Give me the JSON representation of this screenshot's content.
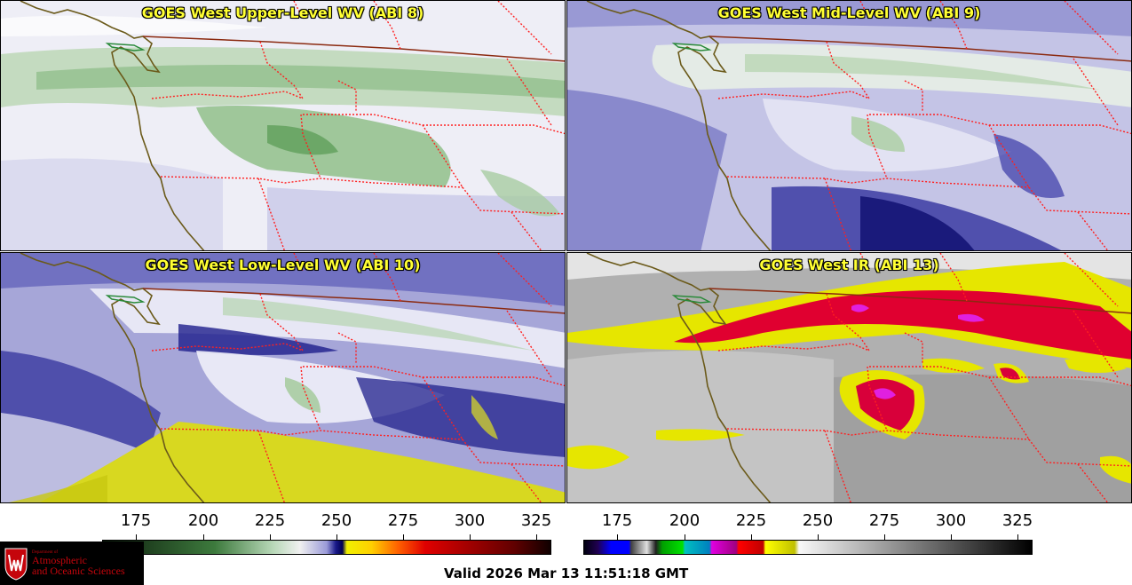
{
  "panels": {
    "upper_left": {
      "title": "GOES West Upper-Level WV (ABI 8)"
    },
    "upper_right": {
      "title": "GOES West Mid-Level WV (ABI 9)"
    },
    "lower_left": {
      "title": "GOES West Low-Level WV (ABI 10)"
    },
    "lower_right": {
      "title": "GOES West IR (ABI 13)"
    }
  },
  "colorbars": {
    "left": {
      "ticks": [
        "175",
        "200",
        "225",
        "250",
        "275",
        "300",
        "325"
      ]
    },
    "right": {
      "ticks": [
        "175",
        "200",
        "225",
        "250",
        "275",
        "300",
        "325"
      ]
    }
  },
  "logo": {
    "department": "Department of",
    "line1": "Atmospheric",
    "line2": "and Oceanic Sciences"
  },
  "valid_time": "Valid 2026 Mar 13 11:51:18 GMT",
  "colors": {
    "title_text": "#ffff33",
    "border_lines": "#ff2020",
    "coastline": "#6b5a1a",
    "logo_red": "#c5050c"
  }
}
